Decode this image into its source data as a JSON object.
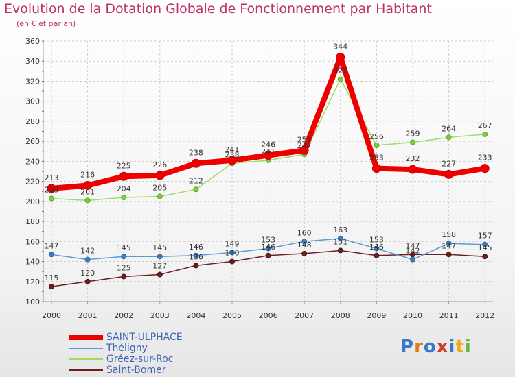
{
  "header": {
    "title": "Evolution de la Dotation Globale de Fonctionnement par Habitant",
    "subtitle": "(en € et par an)"
  },
  "logo": {
    "text": "Proxiti"
  },
  "chart_data": {
    "type": "line",
    "title": "Evolution de la Dotation Globale de Fonctionnement par Habitant",
    "subtitle": "(en € et par an)",
    "xlabel": "",
    "ylabel": "",
    "ylim": [
      100,
      360
    ],
    "yticks": [
      100,
      120,
      140,
      160,
      180,
      200,
      220,
      240,
      260,
      280,
      300,
      320,
      340,
      360
    ],
    "grid": true,
    "legend_position": "bottom-left",
    "x": [
      "2000",
      "2001",
      "2002",
      "2003",
      "2004",
      "2005",
      "2006",
      "2007",
      "2008",
      "2009",
      "2010",
      "2011",
      "2012"
    ],
    "series": [
      {
        "name": "SAINT-ULPHACE",
        "color": "#ee0000",
        "values": [
          213,
          216,
          225,
          226,
          238,
          241,
          246,
          251,
          344,
          233,
          232,
          227,
          233
        ]
      },
      {
        "name": "Théligny",
        "color": "#5b9bd5",
        "values": [
          147,
          142,
          145,
          145,
          146,
          149,
          153,
          160,
          163,
          153,
          142,
          158,
          157
        ]
      },
      {
        "name": "Gréez-sur-Roc",
        "color": "#99dd66",
        "values": [
          203,
          201,
          204,
          205,
          212,
          238,
          241,
          247,
          322,
          256,
          259,
          264,
          267
        ]
      },
      {
        "name": "Saint-Bomer",
        "color": "#6b1f22",
        "values": [
          115,
          120,
          125,
          127,
          136,
          140,
          146,
          148,
          151,
          146,
          147,
          147,
          145
        ]
      }
    ]
  }
}
